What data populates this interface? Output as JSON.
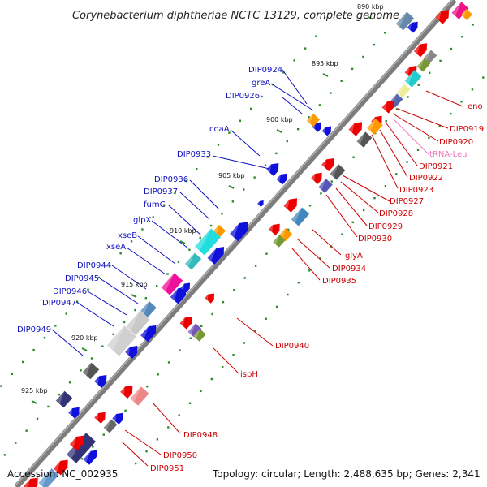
{
  "title": "Corynebacterium diphtheriae NCTC 13129, complete genome",
  "footer": {
    "accession": "Accession: NC_002935",
    "summary": "Topology: circular; Length: 2,488,635 bp; Genes: 2,341"
  },
  "colors": {
    "forward_label": "#1010c0",
    "reverse_label": "#cc0000",
    "trna_label": "#ee77bb",
    "tick": "#2a8a2a",
    "backbone": "#7a7a7a"
  },
  "scale_ticks": [
    "890 kbp",
    "895 kbp",
    "900 kbp",
    "905 kbp",
    "910 kbp",
    "915 kbp",
    "920 kbp",
    "925 kbp"
  ],
  "forward_labels": [
    "DIP0924",
    "greA",
    "DIP0926",
    "coaA",
    "DIP0933",
    "DIP0936",
    "DIP0937",
    "fumC",
    "glpX",
    "xseB",
    "xseA",
    "DIP0944",
    "DIP0945",
    "DIP0946",
    "DIP0947",
    "DIP0949"
  ],
  "reverse_labels": [
    "eno",
    "DIP0919",
    "DIP0920",
    "tRNA-Leu",
    "DIP0921",
    "DIP0922",
    "DIP0923",
    "DIP0927",
    "DIP0928",
    "DIP0929",
    "DIP0930",
    "glyA",
    "DIP0934",
    "DIP0935",
    "DIP0940",
    "ispH",
    "DIP0948",
    "DIP0950",
    "DIP0951"
  ]
}
